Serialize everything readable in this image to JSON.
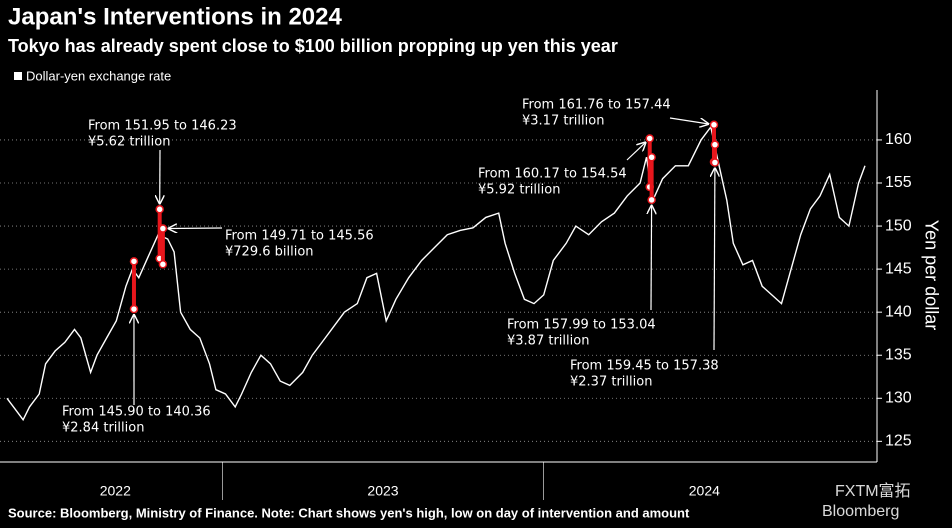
{
  "chart_data": {
    "type": "line",
    "title": "Japan's Interventions in 2024",
    "subtitle": "Tokyo has already spent close to $100 billion propping up yen this year",
    "y_label": "Yen per dollar",
    "source": "Source: Bloomberg, Ministry of Finance. Note: Chart shows yen's high, low on day of intervention and amount",
    "watermark": [
      "FXTM富拓",
      "Bloomberg"
    ],
    "x": [
      2022.33,
      2022.36,
      2022.38,
      2022.4,
      2022.43,
      2022.45,
      2022.48,
      2022.51,
      2022.54,
      2022.56,
      2022.59,
      2022.61,
      2022.64,
      2022.67,
      2022.7,
      2022.72,
      2022.74,
      2022.77,
      2022.8,
      2022.83,
      2022.85,
      2022.87,
      2022.9,
      2022.93,
      2022.96,
      2022.98,
      2023.01,
      2023.04,
      2023.06,
      2023.09,
      2023.12,
      2023.15,
      2023.18,
      2023.21,
      2023.25,
      2023.28,
      2023.32,
      2023.35,
      2023.38,
      2023.42,
      2023.45,
      2023.48,
      2023.51,
      2023.54,
      2023.58,
      2023.62,
      2023.66,
      2023.7,
      2023.74,
      2023.78,
      2023.82,
      2023.86,
      2023.88,
      2023.91,
      2023.94,
      2023.97,
      2024.0,
      2024.03,
      2024.07,
      2024.1,
      2024.14,
      2024.18,
      2024.22,
      2024.26,
      2024.3,
      2024.32,
      2024.34,
      2024.37,
      2024.41,
      2024.45,
      2024.49,
      2024.52,
      2024.54,
      2024.57,
      2024.59,
      2024.62,
      2024.65,
      2024.68,
      2024.71,
      2024.74,
      2024.77,
      2024.8,
      2024.83,
      2024.86,
      2024.89,
      2024.92,
      2024.95,
      2024.98,
      2025.0
    ],
    "series": [
      {
        "name": "Dollar-yen exchange rate",
        "color": "#ffffff",
        "values": [
          130,
          128.5,
          127.5,
          129,
          130.5,
          134,
          135.5,
          136.5,
          138,
          137,
          133,
          135,
          137,
          139,
          143,
          145,
          144,
          146.5,
          149,
          148.5,
          147,
          140,
          138,
          137,
          134,
          131,
          130.5,
          129,
          130.5,
          133,
          135,
          134,
          132,
          131.5,
          133,
          135,
          137,
          138.5,
          140,
          141,
          144,
          144.5,
          139,
          141.5,
          144,
          146,
          147.5,
          149,
          149.5,
          149.8,
          151,
          151.5,
          148,
          144.5,
          141.5,
          141,
          142,
          146,
          148,
          150,
          149,
          150.5,
          151.5,
          153.5,
          155,
          158,
          153,
          155.5,
          157,
          157,
          160,
          161.5,
          158,
          153,
          148,
          145.5,
          146,
          143,
          142,
          141,
          145,
          149,
          152,
          153.5,
          156,
          151,
          150,
          155,
          157
        ]
      }
    ],
    "interventions": [
      {
        "x": 2022.725,
        "high": 145.9,
        "low": 140.36,
        "label": "From 145.90 to 140.36",
        "amount": "¥2.84 trillion"
      },
      {
        "x": 2022.805,
        "high": 151.95,
        "low": 146.23,
        "label": "From 151.95 to 146.23",
        "amount": "¥5.62 trillion"
      },
      {
        "x": 2022.815,
        "high": 149.71,
        "low": 145.56,
        "label": "From 149.71 to 145.56",
        "amount": "¥729.6 billion"
      },
      {
        "x": 2024.33,
        "high": 160.17,
        "low": 154.54,
        "label": "From 160.17 to 154.54",
        "amount": "¥5.92 trillion"
      },
      {
        "x": 2024.336,
        "high": 157.99,
        "low": 153.04,
        "label": "From 157.99 to 153.04",
        "amount": "¥3.87 trillion"
      },
      {
        "x": 2024.53,
        "high": 161.76,
        "low": 157.44,
        "label": "From 161.76 to 157.44",
        "amount": "¥3.17 trillion"
      },
      {
        "x": 2024.533,
        "high": 159.45,
        "low": 157.38,
        "label": "From 159.45 to 157.38",
        "amount": "¥2.37 trillion"
      }
    ],
    "intervention_color": "#e8161c",
    "xlim": [
      2022.333,
      2025.0
    ],
    "xticks": [
      {
        "value": 2022.667,
        "label": "2022"
      },
      {
        "value": 2023.5,
        "label": "2023"
      },
      {
        "value": 2024.5,
        "label": "2024"
      }
    ],
    "ylim": [
      122.6,
      165.8
    ],
    "yticks": [
      125,
      130,
      135,
      140,
      145,
      150,
      155,
      160
    ],
    "grid": true
  }
}
